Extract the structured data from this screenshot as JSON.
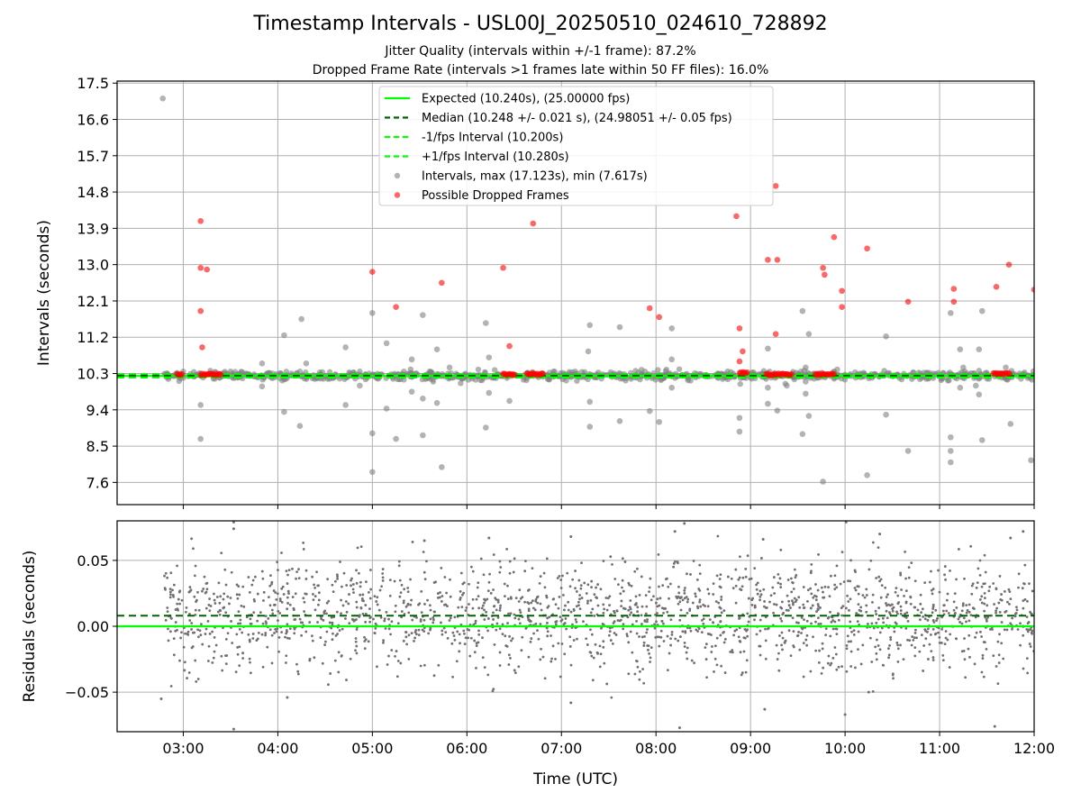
{
  "chart_data": [
    {
      "type": "scatter",
      "title": "Timestamp Intervals - USL00J_20250510_024610_728892",
      "subtitle_1": "Jitter Quality (intervals within +/-1 frame): 87.2%",
      "subtitle_2": "Dropped Frame Rate (intervals >1 frames late within 50 FF files): 16.0%",
      "xlabel": "",
      "ylabel": "Intervals (seconds)",
      "xlim": [
        "02:18",
        "12:00"
      ],
      "ylim": [
        7.05,
        17.55
      ],
      "yticks": [
        "7.6",
        "8.5",
        "9.4",
        "10.3",
        "11.2",
        "12.1",
        "13.0",
        "13.9",
        "14.8",
        "15.7",
        "16.6",
        "17.5"
      ],
      "grid": true,
      "legend_position": "top-center",
      "legend": [
        "Expected (10.240s), (25.00000 fps)",
        "Median (10.248 +/- 0.021 s), (24.98051 +/- 0.05 fps)",
        "-1/fps Interval (10.200s)",
        "+1/fps Interval (10.280s)",
        "Intervals, max (17.123s), min (7.617s)",
        "Possible Dropped Frames"
      ],
      "series": [
        {
          "name": "Expected (10.240s), (25.00000 fps)",
          "kind": "hline",
          "y": 10.24,
          "color": "#00ff00"
        },
        {
          "name": "Median (10.248 +/- 0.021 s), (24.98051 +/- 0.05 fps)",
          "kind": "hline",
          "y": 10.248,
          "color": "#006400"
        },
        {
          "name": "-1/fps Interval (10.200s)",
          "kind": "hline",
          "y": 10.2,
          "color": "#00ff00"
        },
        {
          "name": "+1/fps Interval (10.280s)",
          "kind": "hline",
          "y": 10.28,
          "color": "#00ff00"
        },
        {
          "name": "Intervals, max (17.123s), min (7.617s)",
          "kind": "scatter",
          "color": "#808080",
          "band": {
            "x_start": "02:46",
            "x_end": "12:00",
            "y_center": 10.25,
            "y_spread": 0.05
          },
          "points": [
            {
              "x": "02:47",
              "y": 17.12
            },
            {
              "x": "03:00",
              "y": 10.35
            },
            {
              "x": "03:11",
              "y": 9.52
            },
            {
              "x": "03:11",
              "y": 8.68
            },
            {
              "x": "03:50",
              "y": 10.55
            },
            {
              "x": "03:50",
              "y": 9.98
            },
            {
              "x": "04:04",
              "y": 11.25
            },
            {
              "x": "04:04",
              "y": 9.35
            },
            {
              "x": "04:14",
              "y": 10.35
            },
            {
              "x": "04:14",
              "y": 9.0
            },
            {
              "x": "04:15",
              "y": 11.65
            },
            {
              "x": "04:18",
              "y": 10.55
            },
            {
              "x": "04:43",
              "y": 10.95
            },
            {
              "x": "04:43",
              "y": 9.52
            },
            {
              "x": "04:52",
              "y": 10.35
            },
            {
              "x": "04:52",
              "y": 10.0
            },
            {
              "x": "05:00",
              "y": 11.8
            },
            {
              "x": "05:00",
              "y": 8.82
            },
            {
              "x": "05:00",
              "y": 7.86
            },
            {
              "x": "05:09",
              "y": 11.05
            },
            {
              "x": "05:09",
              "y": 9.43
            },
            {
              "x": "05:15",
              "y": 8.68
            },
            {
              "x": "05:20",
              "y": 10.35
            },
            {
              "x": "05:20",
              "y": 10.15
            },
            {
              "x": "05:25",
              "y": 10.65
            },
            {
              "x": "05:25",
              "y": 9.85
            },
            {
              "x": "05:32",
              "y": 11.75
            },
            {
              "x": "05:32",
              "y": 9.68
            },
            {
              "x": "05:32",
              "y": 8.77
            },
            {
              "x": "05:41",
              "y": 10.9
            },
            {
              "x": "05:41",
              "y": 9.57
            },
            {
              "x": "05:44",
              "y": 7.98
            },
            {
              "x": "05:49",
              "y": 10.45
            },
            {
              "x": "06:12",
              "y": 11.55
            },
            {
              "x": "06:12",
              "y": 8.96
            },
            {
              "x": "06:14",
              "y": 10.7
            },
            {
              "x": "06:14",
              "y": 9.82
            },
            {
              "x": "06:27",
              "y": 9.62
            },
            {
              "x": "07:18",
              "y": 11.5
            },
            {
              "x": "07:18",
              "y": 9.6
            },
            {
              "x": "07:18",
              "y": 8.98
            },
            {
              "x": "07:17",
              "y": 10.85
            },
            {
              "x": "07:37",
              "y": 11.45
            },
            {
              "x": "07:37",
              "y": 9.12
            },
            {
              "x": "07:53",
              "y": 10.35
            },
            {
              "x": "07:56",
              "y": 9.37
            },
            {
              "x": "08:02",
              "y": 9.1
            },
            {
              "x": "08:10",
              "y": 11.42
            },
            {
              "x": "08:10",
              "y": 10.65
            },
            {
              "x": "08:10",
              "y": 9.95
            },
            {
              "x": "08:53",
              "y": 9.2
            },
            {
              "x": "08:53",
              "y": 8.86
            },
            {
              "x": "09:11",
              "y": 9.95
            },
            {
              "x": "09:11",
              "y": 10.92
            },
            {
              "x": "09:11",
              "y": 9.55
            },
            {
              "x": "09:17",
              "y": 9.38
            },
            {
              "x": "09:23",
              "y": 10.0
            },
            {
              "x": "09:33",
              "y": 11.85
            },
            {
              "x": "09:33",
              "y": 8.8
            },
            {
              "x": "09:37",
              "y": 11.28
            },
            {
              "x": "09:37",
              "y": 9.25
            },
            {
              "x": "09:32",
              "y": 10.35
            },
            {
              "x": "09:35",
              "y": 10.45
            },
            {
              "x": "09:35",
              "y": 10.1
            },
            {
              "x": "09:35",
              "y": 9.8
            },
            {
              "x": "09:55",
              "y": 10.4
            },
            {
              "x": "09:46",
              "y": 7.62
            },
            {
              "x": "10:14",
              "y": 7.78
            },
            {
              "x": "10:26",
              "y": 11.22
            },
            {
              "x": "10:26",
              "y": 9.28
            },
            {
              "x": "10:40",
              "y": 8.38
            },
            {
              "x": "11:07",
              "y": 11.8
            },
            {
              "x": "11:07",
              "y": 8.72
            },
            {
              "x": "11:07",
              "y": 8.38
            },
            {
              "x": "11:07",
              "y": 8.1
            },
            {
              "x": "11:13",
              "y": 10.9
            },
            {
              "x": "11:13",
              "y": 9.95
            },
            {
              "x": "11:15",
              "y": 10.45
            },
            {
              "x": "11:16",
              "y": 10.35
            },
            {
              "x": "11:23",
              "y": 10.0
            },
            {
              "x": "11:25",
              "y": 10.9
            },
            {
              "x": "11:25",
              "y": 9.78
            },
            {
              "x": "11:27",
              "y": 11.85
            },
            {
              "x": "11:27",
              "y": 8.65
            },
            {
              "x": "11:42",
              "y": 10.45
            },
            {
              "x": "11:45",
              "y": 9.05
            },
            {
              "x": "11:58",
              "y": 8.15
            }
          ]
        },
        {
          "name": "Possible Dropped Frames",
          "kind": "scatter",
          "color": "#ff0000",
          "clusters": [
            {
              "x_start": "02:56",
              "x_end": "03:00",
              "y": 10.28
            },
            {
              "x_start": "03:11",
              "x_end": "03:24",
              "y": 10.28
            },
            {
              "x_start": "06:23",
              "x_end": "06:31",
              "y": 10.28
            },
            {
              "x_start": "06:38",
              "x_end": "06:49",
              "y": 10.28
            },
            {
              "x_start": "08:53",
              "x_end": "08:58",
              "y": 10.32
            },
            {
              "x_start": "09:10",
              "x_end": "09:26",
              "y": 10.28
            },
            {
              "x_start": "09:41",
              "x_end": "09:53",
              "y": 10.28
            },
            {
              "x_start": "11:34",
              "x_end": "11:45",
              "y": 10.3
            }
          ],
          "points": [
            {
              "x": "03:11",
              "y": 14.08
            },
            {
              "x": "03:11",
              "y": 12.92
            },
            {
              "x": "03:15",
              "y": 12.88
            },
            {
              "x": "03:11",
              "y": 11.85
            },
            {
              "x": "03:12",
              "y": 10.95
            },
            {
              "x": "05:00",
              "y": 12.82
            },
            {
              "x": "05:15",
              "y": 11.95
            },
            {
              "x": "05:44",
              "y": 12.55
            },
            {
              "x": "06:23",
              "y": 12.92
            },
            {
              "x": "06:27",
              "y": 10.98
            },
            {
              "x": "06:42",
              "y": 14.02
            },
            {
              "x": "07:56",
              "y": 11.92
            },
            {
              "x": "08:02",
              "y": 11.7
            },
            {
              "x": "08:51",
              "y": 14.2
            },
            {
              "x": "08:53",
              "y": 11.42
            },
            {
              "x": "08:55",
              "y": 10.85
            },
            {
              "x": "08:53",
              "y": 10.6
            },
            {
              "x": "09:11",
              "y": 13.12
            },
            {
              "x": "09:16",
              "y": 14.95
            },
            {
              "x": "09:17",
              "y": 13.12
            },
            {
              "x": "09:16",
              "y": 11.28
            },
            {
              "x": "09:46",
              "y": 12.92
            },
            {
              "x": "09:47",
              "y": 12.75
            },
            {
              "x": "09:53",
              "y": 13.68
            },
            {
              "x": "09:58",
              "y": 12.35
            },
            {
              "x": "09:58",
              "y": 11.95
            },
            {
              "x": "10:14",
              "y": 13.4
            },
            {
              "x": "10:40",
              "y": 12.08
            },
            {
              "x": "11:09",
              "y": 12.4
            },
            {
              "x": "11:09",
              "y": 12.08
            },
            {
              "x": "11:36",
              "y": 12.45
            },
            {
              "x": "11:44",
              "y": 13.0
            },
            {
              "x": "12:00",
              "y": 12.38
            }
          ]
        }
      ]
    },
    {
      "type": "scatter",
      "xlabel": "Time (UTC)",
      "ylabel": "Residuals (seconds)",
      "xlim": [
        "02:18",
        "12:00"
      ],
      "ylim": [
        -0.08,
        0.08
      ],
      "yticks": [
        "−0.05",
        "0.00",
        "0.05"
      ],
      "xticks": [
        "03:00",
        "04:00",
        "05:00",
        "06:00",
        "07:00",
        "08:00",
        "09:00",
        "10:00",
        "11:00",
        "12:00"
      ],
      "grid": true,
      "series": [
        {
          "kind": "hline",
          "y": 0.0,
          "color": "#00ff00"
        },
        {
          "kind": "hline",
          "y": 0.008,
          "color": "#006400"
        },
        {
          "kind": "scatter",
          "color": "#707070",
          "band": {
            "x_start": "02:48",
            "x_end": "12:00",
            "y_center": 0.008,
            "y_spread": 0.021
          },
          "points": [
            {
              "x": "02:46",
              "y": -0.055
            },
            {
              "x": "03:32",
              "y": 0.074
            },
            {
              "x": "03:32",
              "y": -0.078
            },
            {
              "x": "04:06",
              "y": -0.054
            },
            {
              "x": "05:33",
              "y": 0.065
            },
            {
              "x": "06:14",
              "y": 0.067
            },
            {
              "x": "07:06",
              "y": 0.068
            },
            {
              "x": "07:06",
              "y": -0.058
            },
            {
              "x": "08:12",
              "y": 0.072
            },
            {
              "x": "08:18",
              "y": 0.078
            },
            {
              "x": "08:15",
              "y": -0.077
            },
            {
              "x": "09:08",
              "y": 0.066
            },
            {
              "x": "09:09",
              "y": -0.063
            },
            {
              "x": "10:00",
              "y": -0.067
            },
            {
              "x": "10:22",
              "y": 0.07
            },
            {
              "x": "10:15",
              "y": -0.05
            },
            {
              "x": "11:35",
              "y": -0.076
            },
            {
              "x": "11:53",
              "y": 0.072
            },
            {
              "x": "11:45",
              "y": 0.067
            }
          ]
        }
      ]
    }
  ]
}
